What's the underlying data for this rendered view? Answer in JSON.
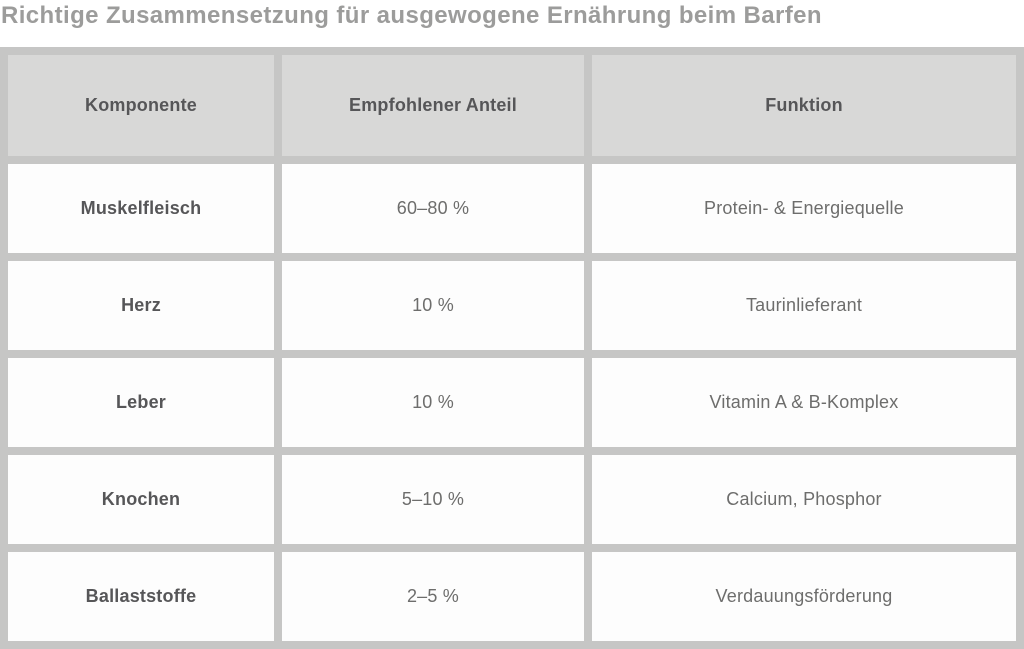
{
  "title": "Richtige Zusammensetzung für ausgewogene Ernährung beim Barfen",
  "chart_data": {
    "type": "table",
    "title": "Richtige Zusammensetzung für ausgewogene Ernährung beim Barfen",
    "columns": [
      "Komponente",
      "Empfohlener Anteil",
      "Funktion"
    ],
    "rows": [
      [
        "Muskelfleisch",
        "60–80 %",
        "Protein- & Energiequelle"
      ],
      [
        "Herz",
        "10 %",
        "Taurinlieferant"
      ],
      [
        "Leber",
        "10 %",
        "Vitamin A & B-Komplex"
      ],
      [
        "Knochen",
        "5–10 %",
        "Calcium, Phosphor"
      ],
      [
        "Ballaststoffe",
        "2–5 %",
        "Verdauungsförderung"
      ]
    ],
    "layout_hints": {
      "header_row": true,
      "first_column_bold": true,
      "grid": "thick gray cell gaps"
    }
  },
  "colors": {
    "title_text": "#9c9c9b",
    "table_gap": "#c6c6c5",
    "header_cell_bg": "#d8d8d7",
    "data_cell_bg": "#fdfdfd",
    "header_text": "#565658",
    "component_text": "#565658",
    "cell_text": "#6d6d6c",
    "page_bg": "#ffffff"
  }
}
